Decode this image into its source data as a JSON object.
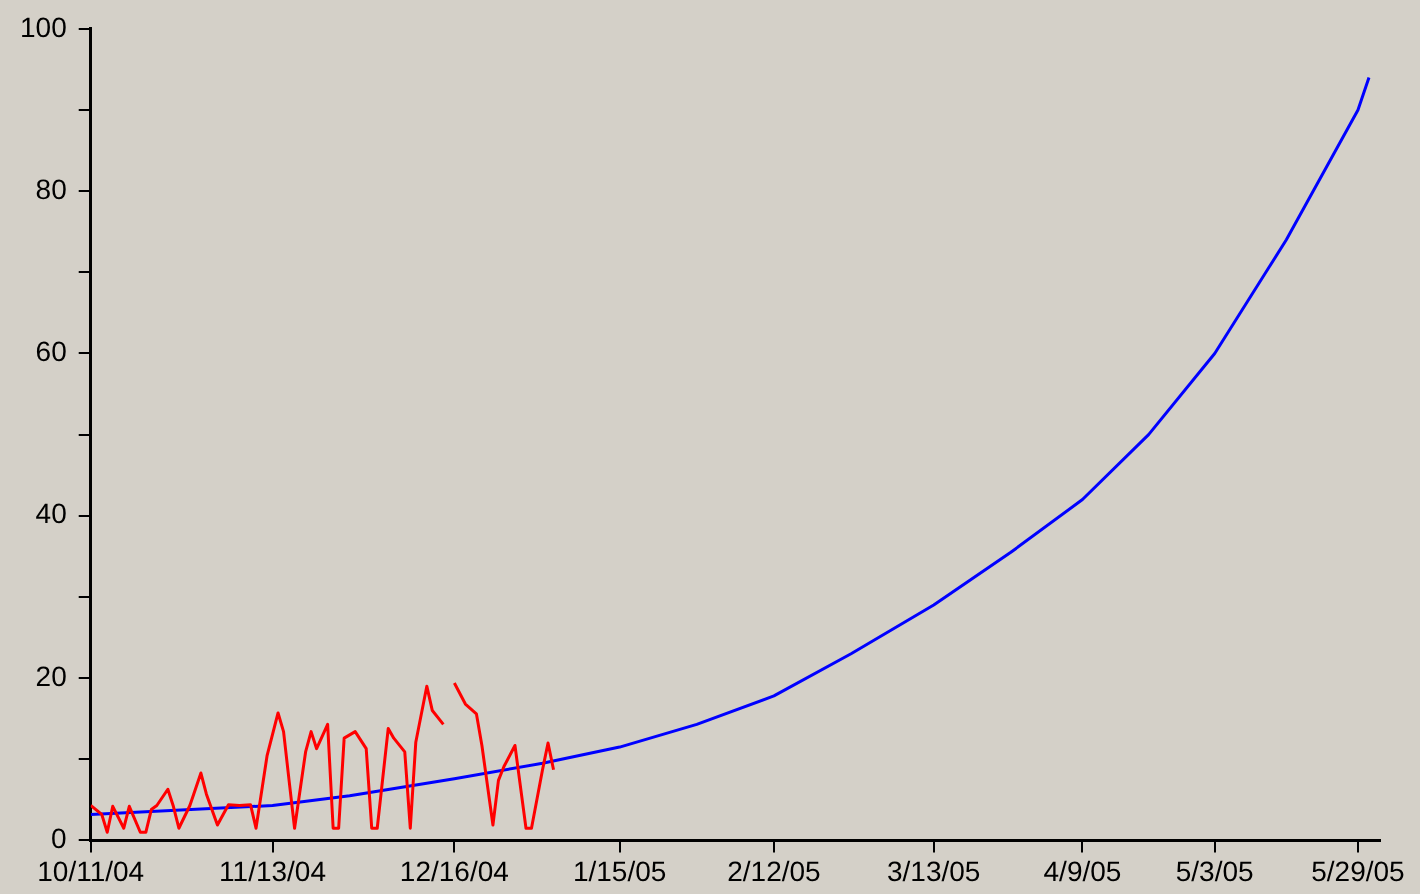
{
  "chart_data": {
    "type": "line",
    "marker": "none",
    "legend": false,
    "grid": false,
    "xlim": [
      "2004-10-11",
      "2005-06-02"
    ],
    "xticks": [
      {
        "value": "2004-10-11",
        "label": "10/11/04"
      },
      {
        "value": "2004-11-13",
        "label": "11/13/04"
      },
      {
        "value": "2004-12-16",
        "label": "12/16/04"
      },
      {
        "value": "2005-01-15",
        "label": "1/15/05"
      },
      {
        "value": "2005-02-12",
        "label": "2/12/05"
      },
      {
        "value": "2005-03-13",
        "label": "3/13/05"
      },
      {
        "value": "2005-04-09",
        "label": "4/9/05"
      },
      {
        "value": "2005-05-03",
        "label": "5/3/05"
      },
      {
        "value": "2005-05-29",
        "label": "5/29/05"
      }
    ],
    "ylim": [
      0,
      100
    ],
    "yticks": [
      0,
      {
        "value": 10,
        "label": null
      },
      20,
      {
        "value": 30,
        "label": null
      },
      40,
      {
        "value": 50,
        "label": null
      },
      60,
      {
        "value": 70,
        "label": null
      },
      80,
      {
        "value": 90,
        "label": null
      },
      100
    ],
    "series": [
      {
        "color": "#ff0000",
        "x": [
          "2004-10-11",
          "2004-10-13",
          "2004-10-14",
          "2004-10-15",
          "2004-10-17",
          "2004-10-18",
          "2004-10-20",
          "2004-10-21",
          "2004-10-22",
          "2004-10-23",
          "2004-10-25",
          "2004-10-26",
          "2004-10-27",
          "2004-10-29",
          "2004-10-31",
          "2004-11-01",
          "2004-11-03",
          "2004-11-05",
          "2004-11-07",
          "2004-11-09",
          "2004-11-10",
          "2004-11-12",
          "2004-11-14",
          "2004-11-15",
          "2004-11-16",
          "2004-11-17",
          "2004-11-19",
          "2004-11-20",
          "2004-11-21",
          "2004-11-23",
          "2004-11-24",
          "2004-11-25",
          "2004-11-26",
          "2004-11-28",
          "2004-11-30",
          "2004-12-01",
          "2004-12-02",
          "2004-12-04",
          "2004-12-05",
          "2004-12-07",
          "2004-12-08",
          "2004-12-09",
          "2004-12-11",
          "2004-12-12",
          "2004-12-14",
          "2004-12-15",
          "2004-12-16",
          "2004-12-18",
          "2004-12-20",
          "2004-12-21",
          "2004-12-23",
          "2004-12-24",
          "2004-12-25",
          "2004-12-27",
          "2004-12-29",
          "2004-12-30",
          "2005-01-01",
          "2005-01-02",
          "2005-01-03"
        ],
        "values": [
          4.3,
          3.2,
          1.0,
          4.2,
          1.5,
          4.2,
          1.0,
          1.0,
          3.8,
          4.3,
          6.3,
          4.2,
          1.5,
          4.3,
          8.3,
          5.7,
          1.9,
          4.4,
          4.3,
          4.4,
          1.5,
          10.4,
          15.7,
          13.4,
          7.4,
          1.5,
          10.9,
          13.4,
          11.3,
          14.3,
          1.5,
          1.5,
          12.6,
          13.4,
          11.3,
          1.5,
          1.5,
          13.8,
          12.6,
          10.9,
          1.5,
          12.1,
          19.0,
          16.0,
          14.3,
          null,
          19.4,
          16.8,
          15.6,
          11.7,
          1.9,
          7.4,
          9.1,
          11.7,
          1.5,
          1.5,
          8.7,
          12.0,
          8.7
        ]
      },
      {
        "color": "#0000ff",
        "x": [
          "2004-10-11",
          "2004-11-13",
          "2004-11-27",
          "2004-12-16",
          "2005-01-01",
          "2005-01-15",
          "2005-01-29",
          "2005-02-12",
          "2005-02-26",
          "2005-03-13",
          "2005-03-27",
          "2005-04-09",
          "2005-04-21",
          "2005-05-03",
          "2005-05-16",
          "2005-05-29",
          "2005-05-31"
        ],
        "values": [
          3.2,
          4.3,
          5.5,
          7.6,
          9.5,
          11.5,
          14.3,
          17.8,
          23,
          29,
          35.5,
          42,
          50,
          60,
          74,
          90,
          94
        ]
      }
    ]
  }
}
